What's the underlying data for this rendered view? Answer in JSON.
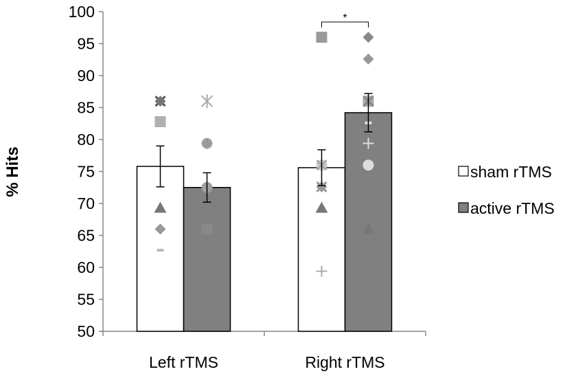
{
  "chart_data": {
    "type": "bar",
    "categories": [
      "Left rTMS",
      "Right rTMS"
    ],
    "series": [
      {
        "name": "sham rTMS",
        "values": [
          75.8,
          75.6
        ],
        "errors": [
          3.2,
          2.8
        ],
        "color": "#ffffff"
      },
      {
        "name": "active rTMS",
        "values": [
          72.5,
          84.2
        ],
        "errors": [
          2.3,
          3.0
        ],
        "color": "#808080"
      }
    ],
    "ylabel": "% Hits",
    "xlabel": "",
    "ylim": [
      50,
      100
    ],
    "yticks": [
      50,
      55,
      60,
      65,
      70,
      75,
      80,
      85,
      90,
      95,
      100
    ],
    "grid": false,
    "legend_position": "right",
    "significance": {
      "label": "*",
      "category": "Right rTMS",
      "between": [
        "sham rTMS",
        "active rTMS"
      ]
    },
    "individual_points": [
      {
        "category": "Left rTMS",
        "series": "sham rTMS",
        "points": [
          {
            "y": 86,
            "marker": "star",
            "color": "#555555"
          },
          {
            "y": 86,
            "marker": "diamond",
            "color": "#777777"
          },
          {
            "y": 82.8,
            "marker": "square",
            "color": "#b0b0b0"
          },
          {
            "y": 69.3,
            "marker": "triangle",
            "color": "#777777"
          },
          {
            "y": 66,
            "marker": "diamond",
            "color": "#999999"
          },
          {
            "y": 62.7,
            "marker": "dash",
            "color": "#bbbbbb"
          }
        ]
      },
      {
        "category": "Left rTMS",
        "series": "active rTMS",
        "points": [
          {
            "y": 86,
            "marker": "asterisk",
            "color": "#aaaaaa"
          },
          {
            "y": 79.4,
            "marker": "circle",
            "color": "#aaaaaa"
          },
          {
            "y": 79.4,
            "marker": "diamond",
            "color": "#999999"
          },
          {
            "y": 72.5,
            "marker": "circle",
            "color": "#a0a0a0"
          },
          {
            "y": 66,
            "marker": "star",
            "color": "#dddddd"
          },
          {
            "y": 66,
            "marker": "square",
            "color": "#888888"
          }
        ]
      },
      {
        "category": "Right rTMS",
        "series": "sham rTMS",
        "points": [
          {
            "y": 76,
            "marker": "circle",
            "color": "#cccccc"
          },
          {
            "y": 76,
            "marker": "star",
            "color": "#aaaaaa"
          },
          {
            "y": 72.6,
            "marker": "star",
            "color": "#999999"
          },
          {
            "y": 72.6,
            "marker": "diamond",
            "color": "#999999"
          },
          {
            "y": 69.3,
            "marker": "triangle",
            "color": "#777777"
          },
          {
            "y": 59.4,
            "marker": "plus",
            "color": "#aaaaaa"
          }
        ]
      },
      {
        "category": "Right rTMS",
        "series": "active rTMS",
        "points": [
          {
            "y": 96,
            "marker": "diamond",
            "color": "#888888"
          },
          {
            "y": 92.6,
            "marker": "diamond",
            "color": "#999999"
          },
          {
            "y": 86,
            "marker": "square",
            "color": "#aaaaaa"
          },
          {
            "y": 86,
            "marker": "star",
            "color": "#888888"
          },
          {
            "y": 82.6,
            "marker": "dash",
            "color": "#dddddd"
          },
          {
            "y": 79.4,
            "marker": "plus",
            "color": "#dddddd"
          },
          {
            "y": 76,
            "marker": "circle",
            "color": "#dddddd"
          },
          {
            "y": 66,
            "marker": "triangle",
            "color": "#777777"
          }
        ]
      }
    ],
    "extra_points": [
      {
        "category": "Right rTMS",
        "series": "sham rTMS",
        "y": 96,
        "marker": "square",
        "color": "#999999"
      }
    ]
  }
}
